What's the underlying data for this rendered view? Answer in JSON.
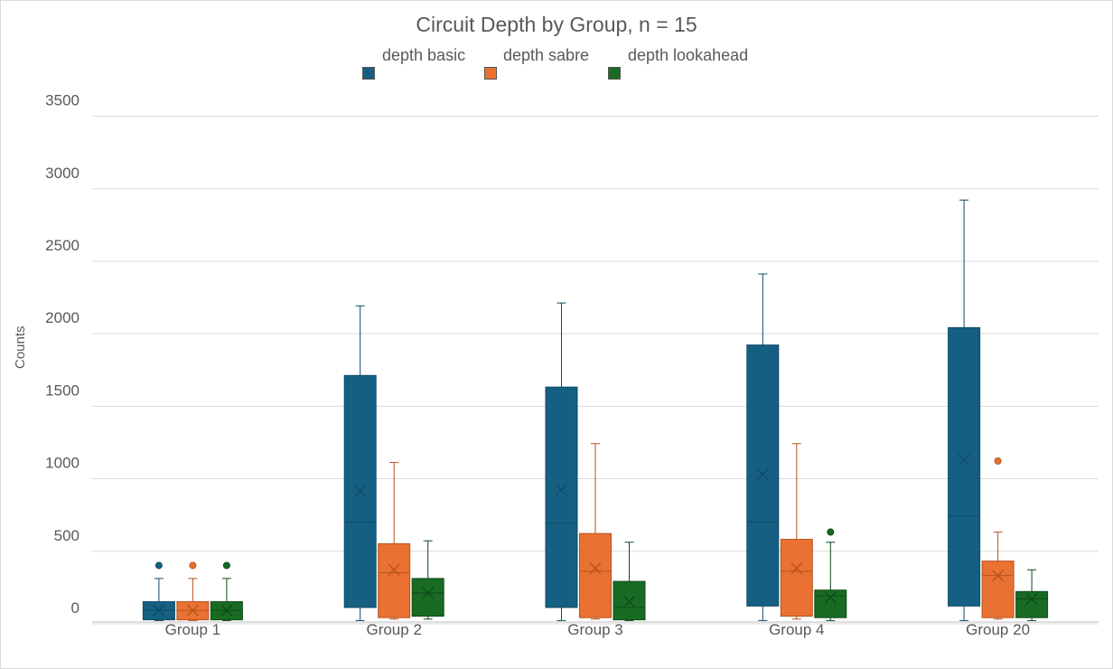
{
  "chart_data": {
    "type": "box",
    "title": "Circuit Depth by Group, n = 15",
    "xlabel": "",
    "ylabel": "Counts",
    "ylim": [
      -100,
      3500
    ],
    "yticks": [
      0,
      500,
      1000,
      1500,
      2000,
      2500,
      3000,
      3500
    ],
    "grid": true,
    "legend_position": "top",
    "categories": [
      "Group 1",
      "Group 2",
      "Group 3",
      "Group 4",
      "Group 20"
    ],
    "series": [
      {
        "name": "depth basic",
        "color": "#156082",
        "boxes": [
          {
            "min": -90,
            "q1": -85,
            "median": -20,
            "q3": 40,
            "max": 200,
            "mean": -20,
            "outliers": [
              290
            ]
          },
          {
            "min": -90,
            "q1": 0,
            "median": 590,
            "q3": 1600,
            "max": 2080,
            "mean": 800,
            "outliers": []
          },
          {
            "min": -90,
            "q1": 0,
            "median": 580,
            "q3": 1520,
            "max": 2100,
            "mean": 810,
            "outliers": []
          },
          {
            "min": -90,
            "q1": 10,
            "median": 590,
            "q3": 1810,
            "max": 2300,
            "mean": 920,
            "outliers": []
          },
          {
            "min": -90,
            "q1": 10,
            "median": 630,
            "q3": 1930,
            "max": 2810,
            "mean": 1020,
            "outliers": []
          }
        ]
      },
      {
        "name": "depth sabre",
        "color": "#E97132",
        "boxes": [
          {
            "min": -90,
            "q1": -85,
            "median": -20,
            "q3": 40,
            "max": 200,
            "mean": -20,
            "outliers": [
              290
            ]
          },
          {
            "min": -80,
            "q1": -70,
            "median": 240,
            "q3": 440,
            "max": 1000,
            "mean": 260,
            "outliers": []
          },
          {
            "min": -80,
            "q1": -70,
            "median": 250,
            "q3": 510,
            "max": 1130,
            "mean": 270,
            "outliers": []
          },
          {
            "min": -80,
            "q1": -60,
            "median": 250,
            "q3": 470,
            "max": 1130,
            "mean": 270,
            "outliers": []
          },
          {
            "min": -80,
            "q1": -70,
            "median": 220,
            "q3": 320,
            "max": 520,
            "mean": 220,
            "outliers": [
              1010
            ]
          }
        ]
      },
      {
        "name": "depth lookahead",
        "color": "#196B24",
        "boxes": [
          {
            "min": -90,
            "q1": -85,
            "median": -20,
            "q3": 40,
            "max": 200,
            "mean": -20,
            "outliers": [
              290
            ]
          },
          {
            "min": -80,
            "q1": -60,
            "median": 100,
            "q3": 200,
            "max": 460,
            "mean": 100,
            "outliers": []
          },
          {
            "min": -90,
            "q1": -85,
            "median": 0,
            "q3": 180,
            "max": 450,
            "mean": 40,
            "outliers": []
          },
          {
            "min": -90,
            "q1": -70,
            "median": 80,
            "q3": 120,
            "max": 450,
            "mean": 70,
            "outliers": [
              520
            ]
          },
          {
            "min": -90,
            "q1": -70,
            "median": 60,
            "q3": 110,
            "max": 260,
            "mean": 60,
            "outliers": []
          }
        ]
      }
    ]
  }
}
